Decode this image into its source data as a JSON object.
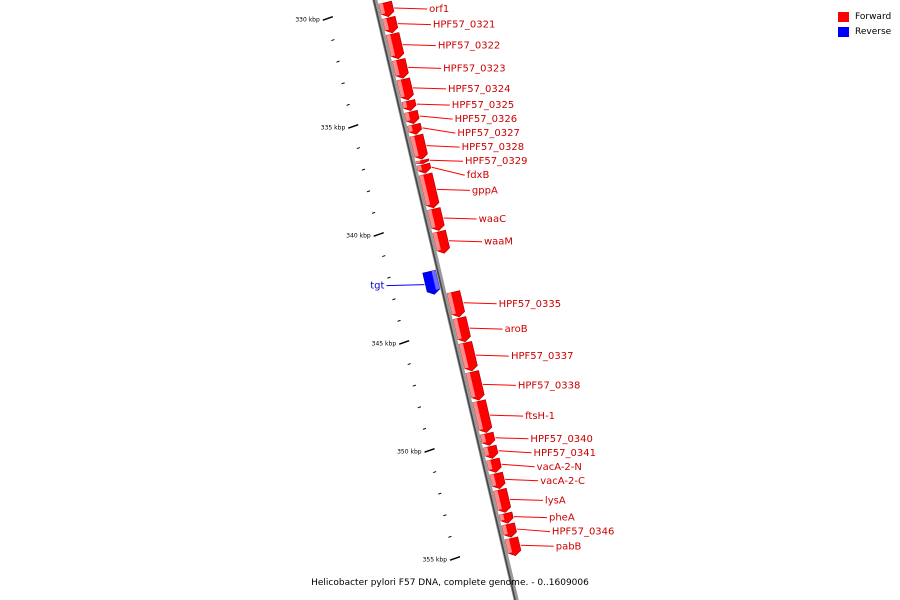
{
  "legend": [
    {
      "label": "Forward",
      "color": "#ff0000"
    },
    {
      "label": "Reverse",
      "color": "#0000ff"
    }
  ],
  "caption": "Helicobacter pylori F57 DNA, complete genome. - 0..1609006",
  "map_data": {
    "units": "kbp",
    "visible_range_kbp": [
      330,
      355.5
    ],
    "major_ticks": [
      {
        "pos": 330,
        "label": "330 kbp"
      },
      {
        "pos": 335,
        "label": "335 kbp"
      },
      {
        "pos": 340,
        "label": "340 kbp"
      },
      {
        "pos": 345,
        "label": "345 kbp"
      },
      {
        "pos": 350,
        "label": "350 kbp"
      },
      {
        "pos": 355,
        "label": "355 kbp"
      }
    ],
    "features": [
      {
        "name": "orf1",
        "strand": "forward",
        "start": 329.9,
        "end": 330.55
      },
      {
        "name": "HPF57_0321",
        "strand": "forward",
        "start": 330.6,
        "end": 331.3
      },
      {
        "name": "HPF57_0322",
        "strand": "forward",
        "start": 331.35,
        "end": 332.5
      },
      {
        "name": "HPF57_0323",
        "strand": "forward",
        "start": 332.55,
        "end": 333.4
      },
      {
        "name": "HPF57_0324",
        "strand": "forward",
        "start": 333.45,
        "end": 334.4
      },
      {
        "name": "HPF57_0325",
        "strand": "forward",
        "start": 334.45,
        "end": 334.9
      },
      {
        "name": "HPF57_0326",
        "strand": "forward",
        "start": 334.95,
        "end": 335.5
      },
      {
        "name": "HPF57_0327",
        "strand": "forward",
        "start": 335.55,
        "end": 336.0
      },
      {
        "name": "HPF57_0328",
        "strand": "forward",
        "start": 336.05,
        "end": 337.15
      },
      {
        "name": "HPF57_0329",
        "strand": "forward",
        "start": 337.2,
        "end": 337.35
      },
      {
        "name": "fdxB",
        "strand": "forward",
        "start": 337.4,
        "end": 337.8
      },
      {
        "name": "gppA",
        "strand": "forward",
        "start": 337.85,
        "end": 339.4
      },
      {
        "name": "waaC",
        "strand": "forward",
        "start": 339.45,
        "end": 340.45
      },
      {
        "name": "waaM",
        "strand": "forward",
        "start": 340.5,
        "end": 341.5
      },
      {
        "name": "tgt",
        "strand": "reverse",
        "start": 342.15,
        "end": 343.2
      },
      {
        "name": "HPF57_0335",
        "strand": "forward",
        "start": 343.3,
        "end": 344.45
      },
      {
        "name": "aroB",
        "strand": "forward",
        "start": 344.5,
        "end": 345.6
      },
      {
        "name": "HPF57_0337",
        "strand": "forward",
        "start": 345.65,
        "end": 346.95
      },
      {
        "name": "HPF57_0338",
        "strand": "forward",
        "start": 347.0,
        "end": 348.3
      },
      {
        "name": "ftsH-1",
        "strand": "forward",
        "start": 348.35,
        "end": 349.8
      },
      {
        "name": "HPF57_0340",
        "strand": "forward",
        "start": 349.85,
        "end": 350.4
      },
      {
        "name": "HPF57_0341",
        "strand": "forward",
        "start": 350.45,
        "end": 351.0
      },
      {
        "name": "vacA-2-N",
        "strand": "forward",
        "start": 351.05,
        "end": 351.65
      },
      {
        "name": "vacA-2-C",
        "strand": "forward",
        "start": 351.7,
        "end": 352.4
      },
      {
        "name": "lysA",
        "strand": "forward",
        "start": 352.45,
        "end": 353.5
      },
      {
        "name": "pheA",
        "strand": "forward",
        "start": 353.55,
        "end": 354.0
      },
      {
        "name": "HPF57_0346",
        "strand": "forward",
        "start": 354.05,
        "end": 354.65
      },
      {
        "name": "pabB",
        "strand": "forward",
        "start": 354.7,
        "end": 355.5
      }
    ]
  }
}
